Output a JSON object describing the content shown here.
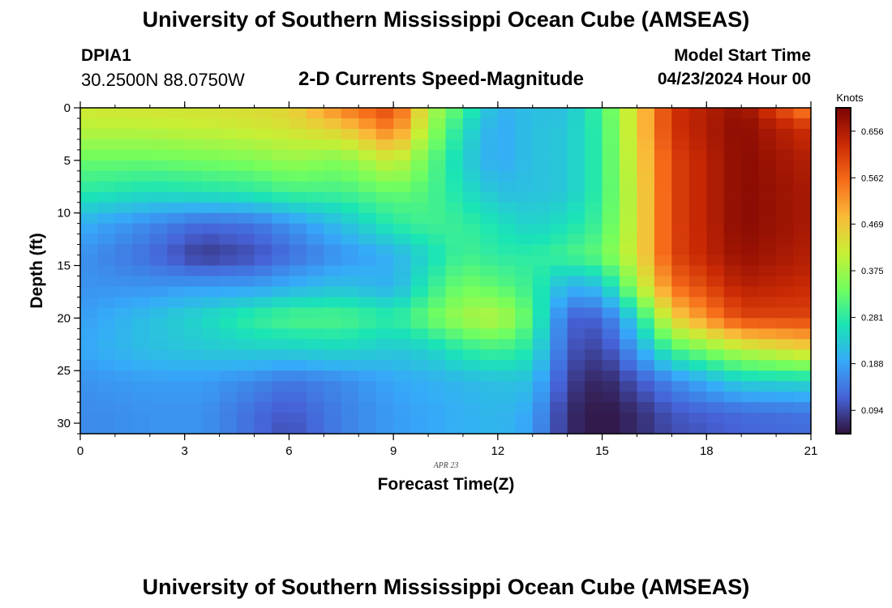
{
  "header": {
    "title": "University of Southern Mississippi Ocean Cube (AMSEAS)",
    "station": "DPIA1",
    "coords": "30.2500N  88.0750W",
    "plot_title": "2-D Currents Speed-Magnitude",
    "start_label": "Model Start Time",
    "start_value": "04/23/2024 Hour 00"
  },
  "footer": {
    "title": "University of Southern Mississippi Ocean Cube (AMSEAS)"
  },
  "chart_data": {
    "type": "heatmap",
    "title": "2-D Currents Speed-Magnitude",
    "xlabel": "Forecast Time(Z)",
    "ylabel": "Depth (ft)",
    "x_range": [
      0,
      21
    ],
    "y_range": [
      0,
      31
    ],
    "x_ticks": [
      0,
      3,
      6,
      9,
      12,
      15,
      18,
      21
    ],
    "y_ticks": [
      0,
      5,
      10,
      15,
      20,
      25,
      30
    ],
    "date_annotation": "APR 23",
    "colorbar": {
      "label": "Knots",
      "min": 0.047,
      "max": 0.703,
      "ticks": [
        "0.094",
        "0.188",
        "0.281",
        "0.375",
        "0.469",
        "0.562",
        "0.656"
      ],
      "colors": [
        "#30123b",
        "#4662d7",
        "#36aaf9",
        "#1ae4b6",
        "#72fe5e",
        "#c8ef34",
        "#faba39",
        "#f66b19",
        "#ca2a04",
        "#7a0403"
      ]
    },
    "n_time_steps": 42,
    "n_depth_levels": 31,
    "depth_profiles": [
      {
        "hour": 0,
        "depths": [
          0,
          2,
          5,
          8,
          11,
          14,
          17,
          20,
          23,
          26,
          29,
          31
        ],
        "values": [
          0.42,
          0.4,
          0.33,
          0.28,
          0.2,
          0.17,
          0.17,
          0.18,
          0.19,
          0.17,
          0.16,
          0.16
        ]
      },
      {
        "hour": 2,
        "depths": [
          0,
          2,
          5,
          8,
          11,
          14,
          17,
          20,
          23,
          26,
          29,
          31
        ],
        "values": [
          0.43,
          0.4,
          0.33,
          0.26,
          0.16,
          0.13,
          0.17,
          0.22,
          0.22,
          0.18,
          0.17,
          0.17
        ]
      },
      {
        "hour": 3.5,
        "depths": [
          0,
          2,
          5,
          8,
          11,
          14,
          17,
          20,
          23,
          26,
          29,
          31
        ],
        "values": [
          0.43,
          0.41,
          0.34,
          0.27,
          0.13,
          0.08,
          0.18,
          0.25,
          0.23,
          0.18,
          0.17,
          0.17
        ]
      },
      {
        "hour": 5,
        "depths": [
          0,
          2,
          5,
          8,
          11,
          14,
          17,
          20,
          23,
          26,
          29,
          31
        ],
        "values": [
          0.44,
          0.42,
          0.35,
          0.28,
          0.14,
          0.1,
          0.18,
          0.29,
          0.24,
          0.16,
          0.13,
          0.13
        ]
      },
      {
        "hour": 6,
        "depths": [
          0,
          2,
          5,
          8,
          11,
          14,
          17,
          20,
          23,
          26,
          29,
          31
        ],
        "values": [
          0.45,
          0.43,
          0.37,
          0.3,
          0.17,
          0.13,
          0.2,
          0.31,
          0.24,
          0.14,
          0.11,
          0.1
        ]
      },
      {
        "hour": 7.5,
        "depths": [
          0,
          2,
          5,
          8,
          11,
          14,
          17,
          20,
          23,
          26,
          29,
          31
        ],
        "values": [
          0.54,
          0.46,
          0.35,
          0.3,
          0.22,
          0.17,
          0.22,
          0.31,
          0.25,
          0.16,
          0.15,
          0.15
        ]
      },
      {
        "hour": 9,
        "depths": [
          0,
          2,
          5,
          8,
          11,
          14,
          17,
          20,
          23,
          26,
          29,
          31
        ],
        "values": [
          0.6,
          0.55,
          0.42,
          0.33,
          0.28,
          0.2,
          0.2,
          0.28,
          0.23,
          0.19,
          0.18,
          0.18
        ]
      },
      {
        "hour": 10,
        "depths": [
          0,
          2,
          5,
          8,
          11,
          14,
          17,
          20,
          23,
          26,
          29,
          31
        ],
        "values": [
          0.4,
          0.38,
          0.33,
          0.31,
          0.3,
          0.25,
          0.28,
          0.33,
          0.24,
          0.2,
          0.19,
          0.19
        ]
      },
      {
        "hour": 11,
        "depths": [
          0,
          2,
          5,
          8,
          11,
          14,
          17,
          20,
          23,
          26,
          29,
          31
        ],
        "values": [
          0.3,
          0.26,
          0.24,
          0.26,
          0.29,
          0.3,
          0.34,
          0.38,
          0.28,
          0.21,
          0.2,
          0.2
        ]
      },
      {
        "hour": 12,
        "depths": [
          0,
          2,
          5,
          8,
          11,
          14,
          17,
          20,
          23,
          26,
          29,
          31
        ],
        "values": [
          0.2,
          0.19,
          0.19,
          0.22,
          0.26,
          0.28,
          0.32,
          0.4,
          0.3,
          0.22,
          0.21,
          0.21
        ]
      },
      {
        "hour": 13,
        "depths": [
          0,
          2,
          5,
          8,
          11,
          14,
          17,
          20,
          23,
          26,
          29,
          31
        ],
        "values": [
          0.22,
          0.22,
          0.22,
          0.22,
          0.24,
          0.28,
          0.29,
          0.31,
          0.27,
          0.22,
          0.19,
          0.18
        ]
      },
      {
        "hour": 14,
        "depths": [
          0,
          2,
          5,
          8,
          11,
          14,
          17,
          20,
          23,
          26,
          29,
          31
        ],
        "values": [
          0.22,
          0.23,
          0.23,
          0.23,
          0.26,
          0.3,
          0.2,
          0.12,
          0.11,
          0.09,
          0.07,
          0.07
        ]
      },
      {
        "hour": 15,
        "depths": [
          0,
          2,
          5,
          8,
          11,
          14,
          17,
          20,
          23,
          26,
          29,
          31
        ],
        "values": [
          0.3,
          0.29,
          0.29,
          0.29,
          0.3,
          0.33,
          0.22,
          0.12,
          0.09,
          0.06,
          0.05,
          0.05
        ]
      },
      {
        "hour": 16,
        "depths": [
          0,
          2,
          5,
          8,
          11,
          14,
          17,
          20,
          23,
          26,
          29,
          31
        ],
        "values": [
          0.45,
          0.45,
          0.44,
          0.43,
          0.43,
          0.43,
          0.38,
          0.25,
          0.18,
          0.11,
          0.07,
          0.07
        ]
      },
      {
        "hour": 17,
        "depths": [
          0,
          2,
          5,
          8,
          11,
          14,
          17,
          20,
          23,
          26,
          29,
          31
        ],
        "values": [
          0.62,
          0.62,
          0.6,
          0.6,
          0.6,
          0.6,
          0.55,
          0.45,
          0.3,
          0.16,
          0.11,
          0.1
        ]
      },
      {
        "hour": 19,
        "depths": [
          0,
          2,
          5,
          8,
          11,
          14,
          17,
          20,
          23,
          26,
          29,
          31
        ],
        "values": [
          0.68,
          0.69,
          0.69,
          0.69,
          0.69,
          0.68,
          0.65,
          0.6,
          0.4,
          0.24,
          0.13,
          0.12
        ]
      },
      {
        "hour": 21,
        "depths": [
          0,
          2,
          5,
          8,
          11,
          14,
          17,
          20,
          23,
          26,
          29,
          31
        ],
        "values": [
          0.52,
          0.62,
          0.65,
          0.66,
          0.66,
          0.65,
          0.63,
          0.6,
          0.45,
          0.25,
          0.14,
          0.13
        ]
      }
    ]
  }
}
